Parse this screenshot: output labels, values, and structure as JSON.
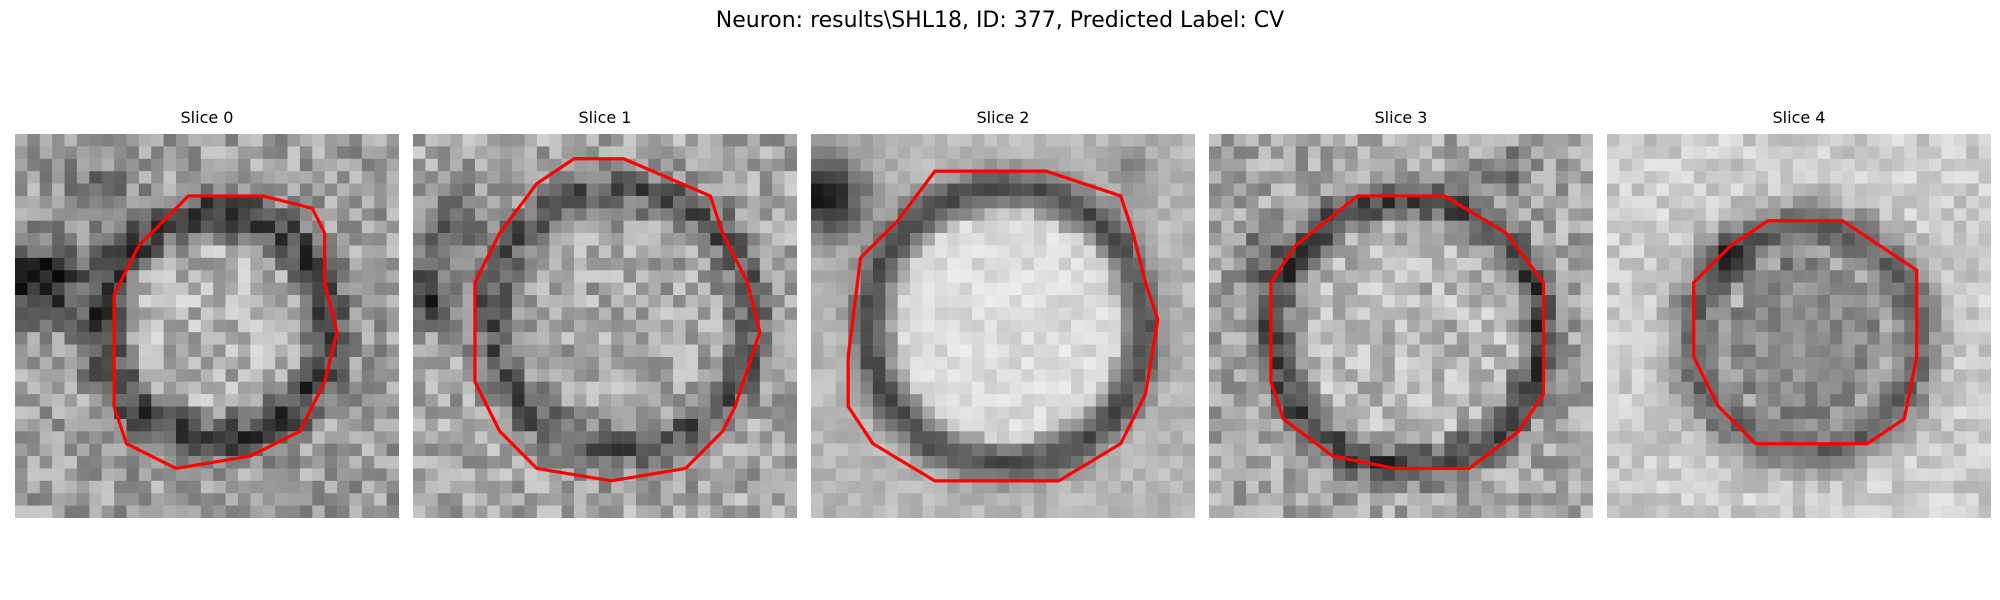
{
  "figure": {
    "title": "Neuron: results\\SHL18, ID: 377, Predicted Label: CV",
    "outline_color": "#ff0000",
    "colormap": "gray",
    "slices": [
      {
        "label": "Slice 0",
        "outline": [
          [
            14,
            5
          ],
          [
            20,
            5
          ],
          [
            24,
            6
          ],
          [
            25,
            8
          ],
          [
            25,
            12
          ],
          [
            26,
            16
          ],
          [
            25,
            20
          ],
          [
            23,
            24
          ],
          [
            19,
            26
          ],
          [
            13,
            27
          ],
          [
            9,
            25
          ],
          [
            8,
            22
          ],
          [
            8,
            13
          ],
          [
            10,
            9
          ],
          [
            12,
            7
          ]
        ]
      },
      {
        "label": "Slice 1",
        "outline": [
          [
            13,
            2
          ],
          [
            17,
            2
          ],
          [
            24,
            5
          ],
          [
            25,
            8
          ],
          [
            27,
            12
          ],
          [
            28,
            16
          ],
          [
            26,
            22
          ],
          [
            25,
            24
          ],
          [
            22,
            27
          ],
          [
            16,
            28
          ],
          [
            10,
            27
          ],
          [
            7,
            24
          ],
          [
            5,
            20
          ],
          [
            5,
            12
          ],
          [
            7,
            8
          ],
          [
            10,
            4
          ]
        ]
      },
      {
        "label": "Slice 2",
        "outline": [
          [
            10,
            3
          ],
          [
            19,
            3
          ],
          [
            25,
            5
          ],
          [
            26,
            8
          ],
          [
            27,
            12
          ],
          [
            28,
            15
          ],
          [
            27,
            21
          ],
          [
            25,
            25
          ],
          [
            20,
            28
          ],
          [
            10,
            28
          ],
          [
            5,
            25
          ],
          [
            3,
            22
          ],
          [
            3,
            18
          ],
          [
            4,
            10
          ],
          [
            7,
            7
          ]
        ]
      },
      {
        "label": "Slice 3",
        "outline": [
          [
            12,
            5
          ],
          [
            19,
            5
          ],
          [
            24,
            8
          ],
          [
            27,
            12
          ],
          [
            27,
            21
          ],
          [
            25,
            24
          ],
          [
            21,
            27
          ],
          [
            15,
            27
          ],
          [
            10,
            26
          ],
          [
            6,
            23
          ],
          [
            5,
            20
          ],
          [
            5,
            12
          ],
          [
            7,
            9
          ]
        ]
      },
      {
        "label": "Slice 4",
        "outline": [
          [
            13,
            7
          ],
          [
            19,
            7
          ],
          [
            25,
            11
          ],
          [
            25,
            18
          ],
          [
            24,
            23
          ],
          [
            21,
            25
          ],
          [
            12,
            25
          ],
          [
            9,
            22
          ],
          [
            7,
            18
          ],
          [
            7,
            12
          ],
          [
            10,
            9
          ]
        ]
      }
    ]
  }
}
